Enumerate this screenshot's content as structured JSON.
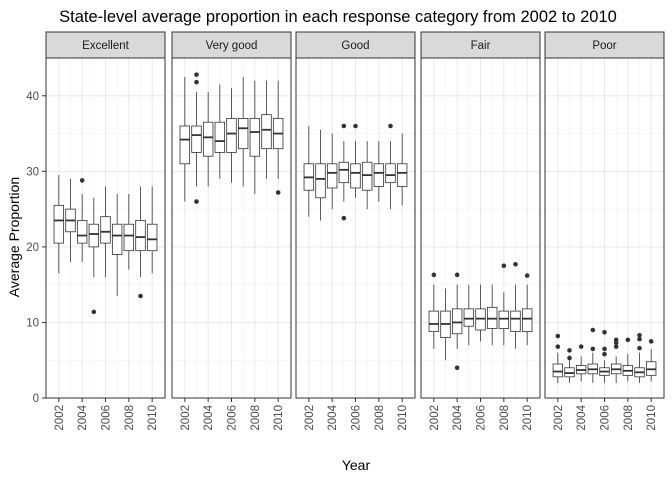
{
  "chart_data": {
    "type": "boxplot",
    "title": "State-level average proportion in each response category from 2002 to 2010",
    "xlabel": "Year",
    "ylabel": "Average Proportion",
    "ylim": [
      0,
      45
    ],
    "yticks": [
      0,
      10,
      20,
      30,
      40
    ],
    "years": [
      "2002",
      "2003",
      "2004",
      "2005",
      "2006",
      "2007",
      "2008",
      "2009",
      "2010"
    ],
    "xtick_labels": [
      "2002",
      "2004",
      "2006",
      "2008",
      "2010"
    ],
    "grid": true,
    "facets": [
      {
        "name": "Excellent",
        "boxes": [
          {
            "year": "2002",
            "low": 16.5,
            "q1": 20.5,
            "median": 23.5,
            "q3": 25.5,
            "high": 29.5,
            "outliers": []
          },
          {
            "year": "2003",
            "low": 18.0,
            "q1": 22.0,
            "median": 23.5,
            "q3": 25.0,
            "high": 29.0,
            "outliers": []
          },
          {
            "year": "2004",
            "low": 18.0,
            "q1": 20.5,
            "median": 21.5,
            "q3": 23.5,
            "high": 27.0,
            "outliers": [
              28.8
            ]
          },
          {
            "year": "2005",
            "low": 16.0,
            "q1": 20.0,
            "median": 21.7,
            "q3": 23.0,
            "high": 26.5,
            "outliers": [
              11.4
            ]
          },
          {
            "year": "2006",
            "low": 16.0,
            "q1": 20.5,
            "median": 22.0,
            "q3": 24.0,
            "high": 28.0,
            "outliers": []
          },
          {
            "year": "2007",
            "low": 13.5,
            "q1": 19.0,
            "median": 21.5,
            "q3": 23.0,
            "high": 27.0,
            "outliers": []
          },
          {
            "year": "2008",
            "low": 17.0,
            "q1": 19.5,
            "median": 21.5,
            "q3": 23.0,
            "high": 27.0,
            "outliers": []
          },
          {
            "year": "2009",
            "low": 16.0,
            "q1": 19.5,
            "median": 21.3,
            "q3": 23.5,
            "high": 28.0,
            "outliers": [
              13.5
            ]
          },
          {
            "year": "2010",
            "low": 16.5,
            "q1": 19.5,
            "median": 21.0,
            "q3": 23.0,
            "high": 28.0,
            "outliers": []
          }
        ]
      },
      {
        "name": "Very good",
        "boxes": [
          {
            "year": "2002",
            "low": 26.0,
            "q1": 31.0,
            "median": 34.2,
            "q3": 36.0,
            "high": 42.5,
            "outliers": []
          },
          {
            "year": "2003",
            "low": 28.0,
            "q1": 32.5,
            "median": 34.8,
            "q3": 36.0,
            "high": 40.5,
            "outliers": [
              42.8,
              41.8,
              26.0
            ]
          },
          {
            "year": "2004",
            "low": 28.0,
            "q1": 32.0,
            "median": 34.5,
            "q3": 36.5,
            "high": 40.5,
            "outliers": []
          },
          {
            "year": "2005",
            "low": 29.0,
            "q1": 32.5,
            "median": 34.0,
            "q3": 36.5,
            "high": 41.5,
            "outliers": []
          },
          {
            "year": "2006",
            "low": 28.5,
            "q1": 32.5,
            "median": 35.0,
            "q3": 37.0,
            "high": 41.0,
            "outliers": []
          },
          {
            "year": "2007",
            "low": 28.0,
            "q1": 33.0,
            "median": 35.7,
            "q3": 37.0,
            "high": 42.5,
            "outliers": []
          },
          {
            "year": "2008",
            "low": 27.0,
            "q1": 32.0,
            "median": 35.2,
            "q3": 37.0,
            "high": 42.0,
            "outliers": []
          },
          {
            "year": "2009",
            "low": 29.0,
            "q1": 33.0,
            "median": 35.5,
            "q3": 37.5,
            "high": 42.0,
            "outliers": []
          },
          {
            "year": "2010",
            "low": 29.0,
            "q1": 33.0,
            "median": 35.0,
            "q3": 37.0,
            "high": 42.0,
            "outliers": [
              27.2
            ]
          }
        ]
      },
      {
        "name": "Good",
        "boxes": [
          {
            "year": "2002",
            "low": 24.0,
            "q1": 27.5,
            "median": 29.2,
            "q3": 31.0,
            "high": 36.0,
            "outliers": []
          },
          {
            "year": "2003",
            "low": 23.5,
            "q1": 26.5,
            "median": 29.0,
            "q3": 31.0,
            "high": 35.5,
            "outliers": []
          },
          {
            "year": "2004",
            "low": 25.0,
            "q1": 27.8,
            "median": 29.8,
            "q3": 31.0,
            "high": 35.0,
            "outliers": []
          },
          {
            "year": "2005",
            "low": 26.0,
            "q1": 28.5,
            "median": 30.2,
            "q3": 31.2,
            "high": 34.0,
            "outliers": [
              36.0,
              23.8
            ]
          },
          {
            "year": "2006",
            "low": 26.5,
            "q1": 27.8,
            "median": 29.8,
            "q3": 31.0,
            "high": 34.0,
            "outliers": [
              36.0
            ]
          },
          {
            "year": "2007",
            "low": 25.0,
            "q1": 27.5,
            "median": 29.5,
            "q3": 31.2,
            "high": 34.0,
            "outliers": []
          },
          {
            "year": "2008",
            "low": 26.0,
            "q1": 28.0,
            "median": 29.8,
            "q3": 31.0,
            "high": 34.0,
            "outliers": []
          },
          {
            "year": "2009",
            "low": 25.0,
            "q1": 28.5,
            "median": 29.5,
            "q3": 31.0,
            "high": 34.0,
            "outliers": [
              36.0
            ]
          },
          {
            "year": "2010",
            "low": 25.5,
            "q1": 28.0,
            "median": 29.8,
            "q3": 31.0,
            "high": 35.0,
            "outliers": []
          }
        ]
      },
      {
        "name": "Fair",
        "boxes": [
          {
            "year": "2002",
            "low": 6.5,
            "q1": 8.8,
            "median": 9.8,
            "q3": 11.5,
            "high": 15.0,
            "outliers": [
              16.3
            ]
          },
          {
            "year": "2003",
            "low": 5.0,
            "q1": 8.0,
            "median": 9.8,
            "q3": 11.5,
            "high": 14.5,
            "outliers": []
          },
          {
            "year": "2004",
            "low": 6.5,
            "q1": 8.5,
            "median": 10.0,
            "q3": 11.8,
            "high": 15.0,
            "outliers": [
              16.3,
              4.0
            ]
          },
          {
            "year": "2005",
            "low": 7.0,
            "q1": 9.5,
            "median": 10.5,
            "q3": 11.8,
            "high": 15.0,
            "outliers": []
          },
          {
            "year": "2006",
            "low": 7.5,
            "q1": 9.0,
            "median": 10.5,
            "q3": 11.8,
            "high": 15.0,
            "outliers": []
          },
          {
            "year": "2007",
            "low": 7.0,
            "q1": 9.2,
            "median": 10.5,
            "q3": 12.0,
            "high": 15.0,
            "outliers": []
          },
          {
            "year": "2008",
            "low": 7.0,
            "q1": 9.2,
            "median": 10.5,
            "q3": 11.5,
            "high": 14.0,
            "outliers": [
              17.5
            ]
          },
          {
            "year": "2009",
            "low": 6.5,
            "q1": 8.8,
            "median": 10.5,
            "q3": 11.5,
            "high": 15.0,
            "outliers": [
              17.7
            ]
          },
          {
            "year": "2010",
            "low": 7.0,
            "q1": 8.8,
            "median": 10.5,
            "q3": 11.8,
            "high": 15.0,
            "outliers": [
              16.2
            ]
          }
        ]
      },
      {
        "name": "Poor",
        "boxes": [
          {
            "year": "2002",
            "low": 2.0,
            "q1": 2.8,
            "median": 3.5,
            "q3": 4.5,
            "high": 6.0,
            "outliers": [
              8.2,
              6.8
            ]
          },
          {
            "year": "2003",
            "low": 2.0,
            "q1": 2.8,
            "median": 3.3,
            "q3": 4.0,
            "high": 5.0,
            "outliers": [
              6.3,
              5.3
            ]
          },
          {
            "year": "2004",
            "low": 2.2,
            "q1": 3.2,
            "median": 3.7,
            "q3": 4.3,
            "high": 5.5,
            "outliers": [
              6.8
            ]
          },
          {
            "year": "2005",
            "low": 2.0,
            "q1": 3.2,
            "median": 3.8,
            "q3": 4.5,
            "high": 6.0,
            "outliers": [
              9.0,
              6.5
            ]
          },
          {
            "year": "2006",
            "low": 2.0,
            "q1": 3.0,
            "median": 3.5,
            "q3": 4.0,
            "high": 5.0,
            "outliers": [
              8.7,
              6.5,
              5.8
            ]
          },
          {
            "year": "2007",
            "low": 2.0,
            "q1": 3.2,
            "median": 3.8,
            "q3": 4.5,
            "high": 5.5,
            "outliers": [
              7.7,
              7.3,
              6.8
            ]
          },
          {
            "year": "2008",
            "low": 2.2,
            "q1": 3.0,
            "median": 3.6,
            "q3": 4.3,
            "high": 5.8,
            "outliers": [
              7.7
            ]
          },
          {
            "year": "2009",
            "low": 2.0,
            "q1": 2.8,
            "median": 3.4,
            "q3": 4.0,
            "high": 6.0,
            "outliers": [
              8.3,
              7.8,
              6.6
            ]
          },
          {
            "year": "2010",
            "low": 2.2,
            "q1": 3.0,
            "median": 3.8,
            "q3": 4.8,
            "high": 6.5,
            "outliers": [
              7.5
            ]
          }
        ]
      }
    ]
  }
}
